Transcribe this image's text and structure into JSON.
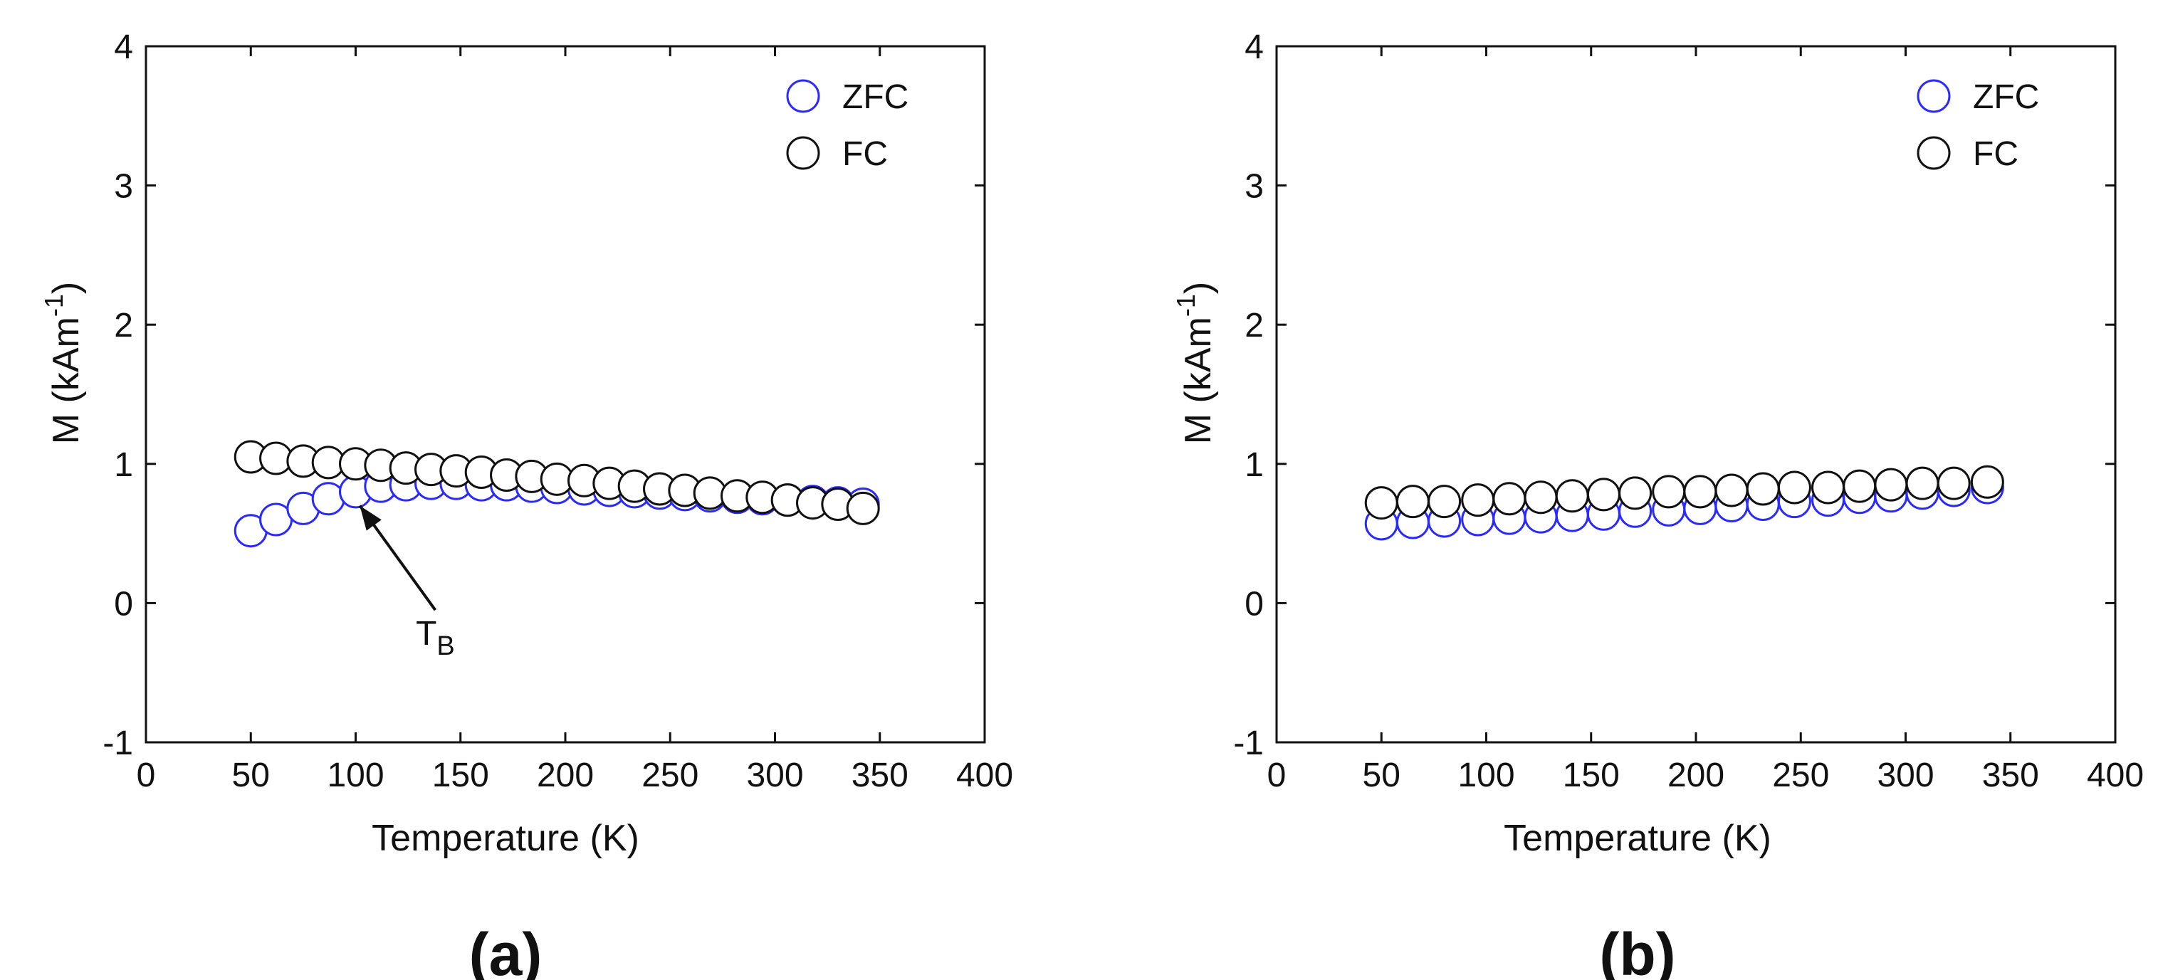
{
  "chart_data": [
    {
      "type": "scatter",
      "panel_label": "(a)",
      "xlabel": "Temperature (K)",
      "ylabel_main": "M (kAm",
      "ylabel_sup": "-1",
      "ylabel_close": ")",
      "xlim": [
        0,
        400
      ],
      "ylim": [
        -1,
        4
      ],
      "xticks": [
        "0",
        "50",
        "100",
        "150",
        "200",
        "250",
        "300",
        "350",
        "400"
      ],
      "yticks": [
        "-1",
        "0",
        "1",
        "2",
        "3",
        "4"
      ],
      "legend_position": "top-right",
      "series": [
        {
          "name": "ZFC",
          "color": "#2a2aff",
          "x": [
            50,
            62,
            75,
            87,
            100,
            112,
            124,
            136,
            148,
            160,
            172,
            184,
            196,
            209,
            221,
            233,
            245,
            257,
            269,
            282,
            294,
            306,
            318,
            330,
            342
          ],
          "y": [
            0.52,
            0.6,
            0.68,
            0.75,
            0.8,
            0.84,
            0.85,
            0.86,
            0.86,
            0.85,
            0.85,
            0.84,
            0.83,
            0.82,
            0.81,
            0.8,
            0.79,
            0.78,
            0.77,
            0.76,
            0.75,
            0.74,
            0.73,
            0.72,
            0.71
          ]
        },
        {
          "name": "FC",
          "color": "#111111",
          "x": [
            50,
            62,
            75,
            87,
            100,
            112,
            124,
            136,
            148,
            160,
            172,
            184,
            196,
            209,
            221,
            233,
            245,
            257,
            269,
            282,
            294,
            306,
            318,
            330,
            342
          ],
          "y": [
            1.05,
            1.04,
            1.02,
            1.01,
            1.0,
            0.99,
            0.97,
            0.96,
            0.95,
            0.94,
            0.92,
            0.91,
            0.89,
            0.88,
            0.86,
            0.84,
            0.82,
            0.81,
            0.79,
            0.77,
            0.76,
            0.74,
            0.72,
            0.71,
            0.68
          ]
        }
      ],
      "annotation": {
        "text_main": "T",
        "text_sub": "B",
        "arrow_tail": [
          138,
          -0.05
        ],
        "arrow_head": [
          102,
          0.7
        ],
        "text_at": [
          138,
          -0.3
        ]
      }
    },
    {
      "type": "scatter",
      "panel_label": "(b)",
      "xlabel": "Temperature (K)",
      "ylabel_main": "M (kAm",
      "ylabel_sup": "-1",
      "ylabel_close": ")",
      "xlim": [
        0,
        400
      ],
      "ylim": [
        -1,
        4
      ],
      "xticks": [
        "0",
        "50",
        "100",
        "150",
        "200",
        "250",
        "300",
        "350",
        "400"
      ],
      "yticks": [
        "-1",
        "0",
        "1",
        "2",
        "3",
        "4"
      ],
      "legend_position": "top-right",
      "series": [
        {
          "name": "ZFC",
          "color": "#2a2aff",
          "x": [
            50,
            65,
            80,
            96,
            111,
            126,
            141,
            156,
            171,
            187,
            202,
            217,
            232,
            247,
            263,
            278,
            293,
            308,
            323,
            339
          ],
          "y": [
            0.57,
            0.58,
            0.59,
            0.6,
            0.61,
            0.62,
            0.63,
            0.64,
            0.66,
            0.67,
            0.68,
            0.7,
            0.71,
            0.73,
            0.74,
            0.76,
            0.77,
            0.79,
            0.81,
            0.83
          ]
        },
        {
          "name": "FC",
          "color": "#111111",
          "x": [
            50,
            65,
            80,
            96,
            111,
            126,
            141,
            156,
            171,
            187,
            202,
            217,
            232,
            247,
            263,
            278,
            293,
            308,
            323,
            339
          ],
          "y": [
            0.72,
            0.73,
            0.73,
            0.74,
            0.75,
            0.76,
            0.77,
            0.78,
            0.79,
            0.8,
            0.8,
            0.81,
            0.82,
            0.83,
            0.83,
            0.84,
            0.85,
            0.86,
            0.86,
            0.87
          ]
        }
      ]
    }
  ]
}
